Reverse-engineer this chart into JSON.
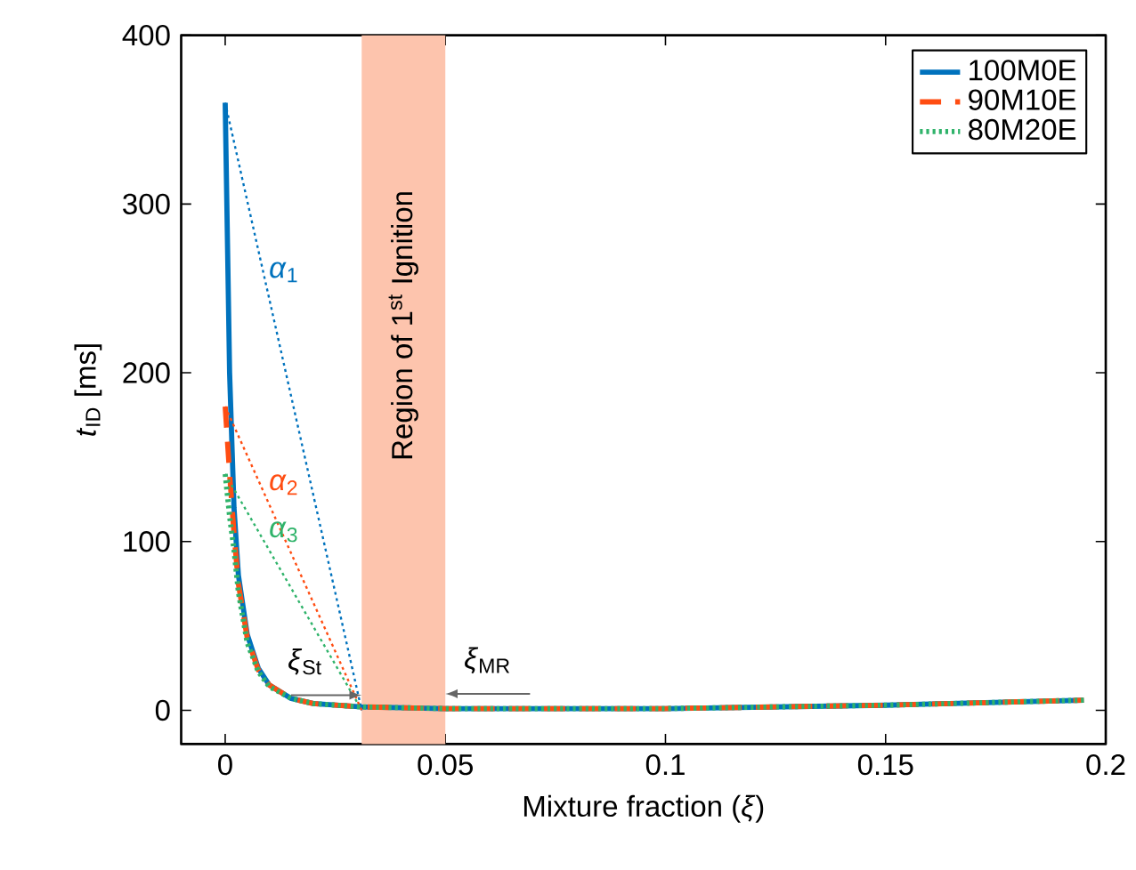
{
  "chart_data": {
    "type": "line",
    "xlabel": "Mixture fraction (*ξ*)",
    "ylabel": "*t*$_{ID}$ [ms]",
    "xlim": [
      -0.01,
      0.2
    ],
    "ylim": [
      -20,
      400
    ],
    "xticks": [
      0,
      0.05,
      0.1,
      0.15,
      0.2
    ],
    "yticks": [
      0,
      100,
      200,
      300,
      400
    ],
    "x": [
      0,
      0.001,
      0.002,
      0.003,
      0.005,
      0.0075,
      0.01,
      0.015,
      0.02,
      0.031,
      0.05,
      0.1,
      0.15,
      0.195
    ],
    "series": [
      {
        "name": "100M0E",
        "color": "#0072bd",
        "line_style": "solid",
        "values": [
          360,
          200,
          120,
          80,
          45,
          25,
          15,
          7,
          4,
          2,
          1,
          1,
          3,
          6
        ]
      },
      {
        "name": "90M10E",
        "color": "#ff4d12",
        "line_style": "dashed",
        "values": [
          180,
          140,
          105,
          75,
          43,
          24,
          15,
          7,
          4,
          2,
          1,
          1,
          3,
          6
        ]
      },
      {
        "name": "80M20E",
        "color": "#2fb36a",
        "line_style": "dotted",
        "values": [
          140,
          115,
          95,
          70,
          40,
          23,
          14,
          7,
          4,
          2,
          1,
          1,
          3,
          6
        ]
      },
      {
        "name": "*α*$_{1}$",
        "color": "#0072bd",
        "type": "line",
        "line_style": "dotted",
        "values": [
          360,
          null,
          null,
          null,
          null,
          null,
          null,
          null,
          null,
          0,
          null,
          null,
          null,
          null
        ]
      },
      {
        "name": "*α*$_{2}$",
        "color": "#ff4d12",
        "type": "line",
        "line_style": "dotted",
        "values": [
          180,
          null,
          null,
          null,
          null,
          null,
          null,
          null,
          null,
          0,
          null,
          null,
          null,
          null
        ]
      },
      {
        "name": "*α*$_{3}$",
        "color": "#2fb36a",
        "type": "line",
        "line_style": "dotted",
        "values": [
          140,
          null,
          null,
          null,
          null,
          null,
          null,
          null,
          null,
          0,
          null,
          null,
          null,
          null
        ]
      }
    ],
    "bands": [
      {
        "axis": "x",
        "from": 0.031,
        "to": 0.05,
        "label": "Region of 1$^{st}$ Ignition",
        "color": "#fdc4ad"
      }
    ],
    "annotations": [
      {
        "text": "*ξ*$_{St}$",
        "x": 0.031,
        "y": 2
      },
      "*ξ*$_{MR}$"
    ],
    "legend": "top right",
    "grid": false
  }
}
